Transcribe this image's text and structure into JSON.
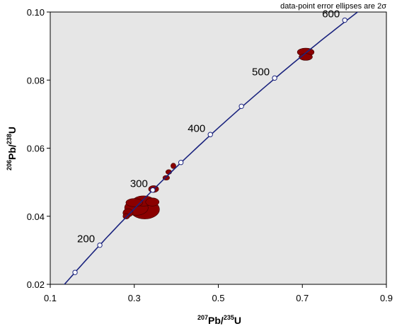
{
  "chart_data": {
    "type": "scatter",
    "subtype": "concordia",
    "title": "",
    "note": "data-point error ellipses are 2σ",
    "xlabel": {
      "sup1": "207",
      "main1": "Pb/",
      "sup2": "235",
      "main2": "U"
    },
    "ylabel": {
      "sup1": "206",
      "main1": "Pb/",
      "sup2": "238",
      "main2": "U"
    },
    "xlim": [
      0.1,
      0.9
    ],
    "ylim": [
      0.02,
      0.1
    ],
    "x_ticks": [
      "0.1",
      "0.3",
      "0.5",
      "0.7",
      "0.9"
    ],
    "y_ticks": [
      "0.02",
      "0.04",
      "0.06",
      "0.08",
      "0.10"
    ],
    "grid": false,
    "background_color": "#e6e6e6",
    "concordia_color": "#1a237e",
    "ellipse_color": "#8b0000",
    "concordia_ages": [
      {
        "age": 150,
        "x": 0.159,
        "y": 0.0235,
        "label": ""
      },
      {
        "age": 200,
        "x": 0.218,
        "y": 0.0315,
        "label": "200"
      },
      {
        "age": 300,
        "x": 0.344,
        "y": 0.0477,
        "label": "300"
      },
      {
        "age": 350,
        "x": 0.411,
        "y": 0.0558,
        "label": ""
      },
      {
        "age": 400,
        "x": 0.481,
        "y": 0.064,
        "label": "400"
      },
      {
        "age": 450,
        "x": 0.555,
        "y": 0.0723,
        "label": ""
      },
      {
        "age": 500,
        "x": 0.634,
        "y": 0.0806,
        "label": "500"
      },
      {
        "age": 600,
        "x": 0.801,
        "y": 0.0976,
        "label": "600"
      }
    ],
    "ellipses": [
      {
        "x": 0.325,
        "y": 0.042,
        "rx": 0.035,
        "ry": 0.0028
      },
      {
        "x": 0.305,
        "y": 0.0425,
        "rx": 0.028,
        "ry": 0.0022
      },
      {
        "x": 0.322,
        "y": 0.0445,
        "rx": 0.025,
        "ry": 0.0015
      },
      {
        "x": 0.3,
        "y": 0.044,
        "rx": 0.02,
        "ry": 0.0012
      },
      {
        "x": 0.285,
        "y": 0.041,
        "rx": 0.012,
        "ry": 0.0012
      },
      {
        "x": 0.281,
        "y": 0.04,
        "rx": 0.008,
        "ry": 0.0008
      },
      {
        "x": 0.343,
        "y": 0.0442,
        "rx": 0.016,
        "ry": 0.0012
      },
      {
        "x": 0.346,
        "y": 0.048,
        "rx": 0.012,
        "ry": 0.001
      },
      {
        "x": 0.376,
        "y": 0.0513,
        "rx": 0.008,
        "ry": 0.0007
      },
      {
        "x": 0.382,
        "y": 0.053,
        "rx": 0.007,
        "ry": 0.0007
      },
      {
        "x": 0.393,
        "y": 0.0548,
        "rx": 0.006,
        "ry": 0.0008
      },
      {
        "x": 0.708,
        "y": 0.0882,
        "rx": 0.02,
        "ry": 0.0012
      },
      {
        "x": 0.708,
        "y": 0.0868,
        "rx": 0.016,
        "ry": 0.001
      }
    ]
  }
}
